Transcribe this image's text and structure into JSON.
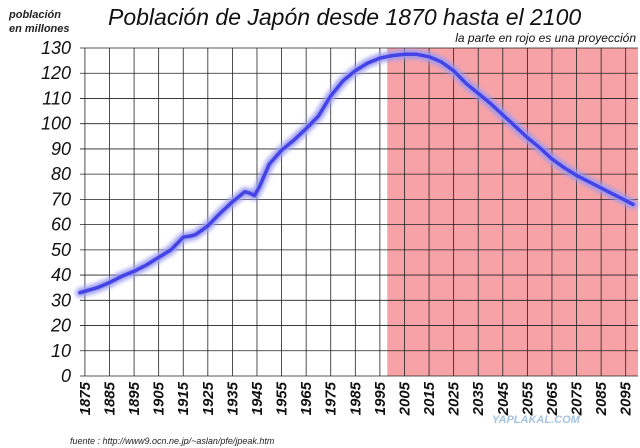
{
  "chart_data": {
    "type": "line",
    "title": "Población de Japón desde 1870 hasta el 2100",
    "subtitle": "la parte en rojo es una proyección",
    "ylabel_line1": "población",
    "ylabel_line2": "en millones",
    "source": "fuente : http://www9.ocn.ne.jp/~aslan/pfe/jpeak.htm",
    "watermark": "YAPLAKAL.COM",
    "ylim": [
      0,
      130
    ],
    "yticks": [
      0,
      10,
      20,
      30,
      40,
      50,
      60,
      70,
      80,
      90,
      100,
      110,
      120,
      130
    ],
    "xlim": [
      1873,
      2100
    ],
    "xticks": [
      1875,
      1885,
      1895,
      1905,
      1915,
      1925,
      1935,
      1945,
      1955,
      1965,
      1975,
      1985,
      1995,
      2005,
      2015,
      2025,
      2035,
      2045,
      2055,
      2065,
      2075,
      2085,
      2095
    ],
    "grid": true,
    "projection_range": [
      1998,
      2100
    ],
    "colors": {
      "line": "#4444e6",
      "line_glow": "#9a9af2",
      "projection_fill": "#f7a2a6",
      "grid": "#222222"
    },
    "series": [
      {
        "x": [
          1873,
          1880,
          1885,
          1890,
          1895,
          1900,
          1905,
          1910,
          1913,
          1915,
          1918,
          1920,
          1925,
          1930,
          1935,
          1940,
          1942,
          1944,
          1946,
          1950,
          1955,
          1960,
          1965,
          1970,
          1975,
          1980,
          1985,
          1990,
          1995,
          2000,
          2005,
          2010,
          2015,
          2020,
          2025,
          2030,
          2035,
          2040,
          2045,
          2050,
          2055,
          2060,
          2065,
          2070,
          2075,
          2080,
          2085,
          2090,
          2095,
          2098
        ],
        "values": [
          33,
          35,
          37,
          39.5,
          41.5,
          44,
          47,
          50,
          53,
          55,
          55.5,
          56,
          59.5,
          64.5,
          69,
          73,
          72.5,
          71.5,
          75,
          84,
          89.5,
          93.5,
          98,
          103,
          111,
          117,
          121,
          124,
          126,
          127,
          127.5,
          127.5,
          126.5,
          124.5,
          121,
          116,
          112,
          108,
          103.5,
          99,
          94.5,
          90.5,
          86,
          82.5,
          79.5,
          77,
          74.5,
          72,
          69.5,
          68
        ]
      }
    ]
  }
}
